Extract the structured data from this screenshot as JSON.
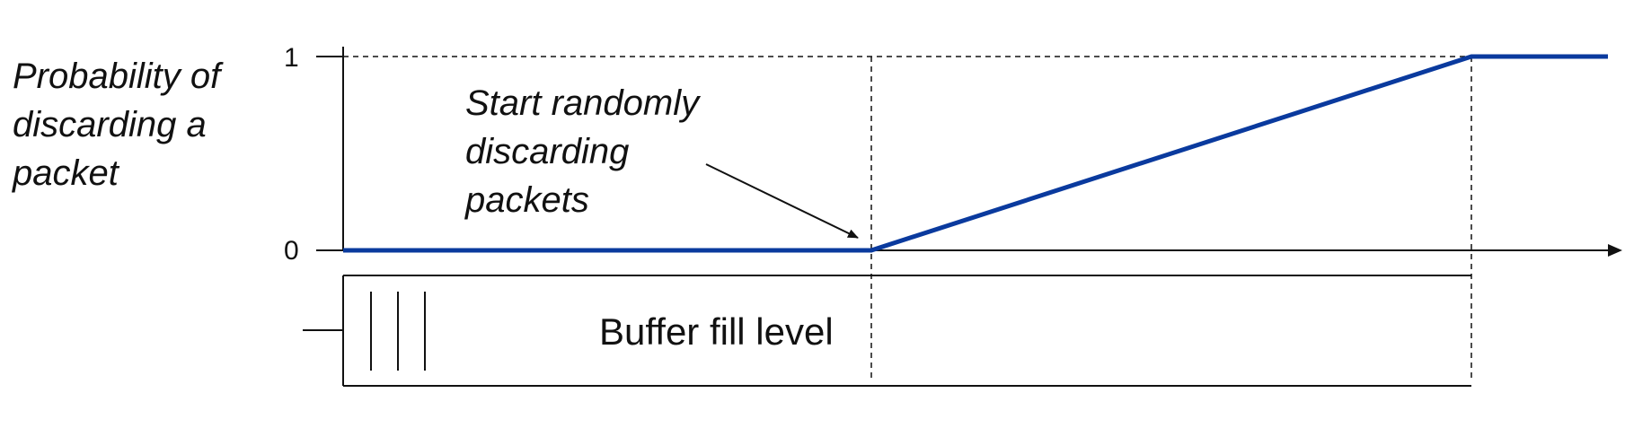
{
  "ylabel_lines": [
    "Probability of",
    "discarding a",
    "packet"
  ],
  "y_ticks": {
    "top": "1",
    "bottom": "0"
  },
  "annotation_lines": [
    "Start randomly",
    "discarding",
    "packets"
  ],
  "buffer_label": "Buffer fill level",
  "colors": {
    "curve": "#0a3a9e",
    "lines": "#111111"
  },
  "icons": {
    "annotation_arrow": "arrow-icon",
    "x_axis_arrow": "arrowhead-icon"
  }
}
